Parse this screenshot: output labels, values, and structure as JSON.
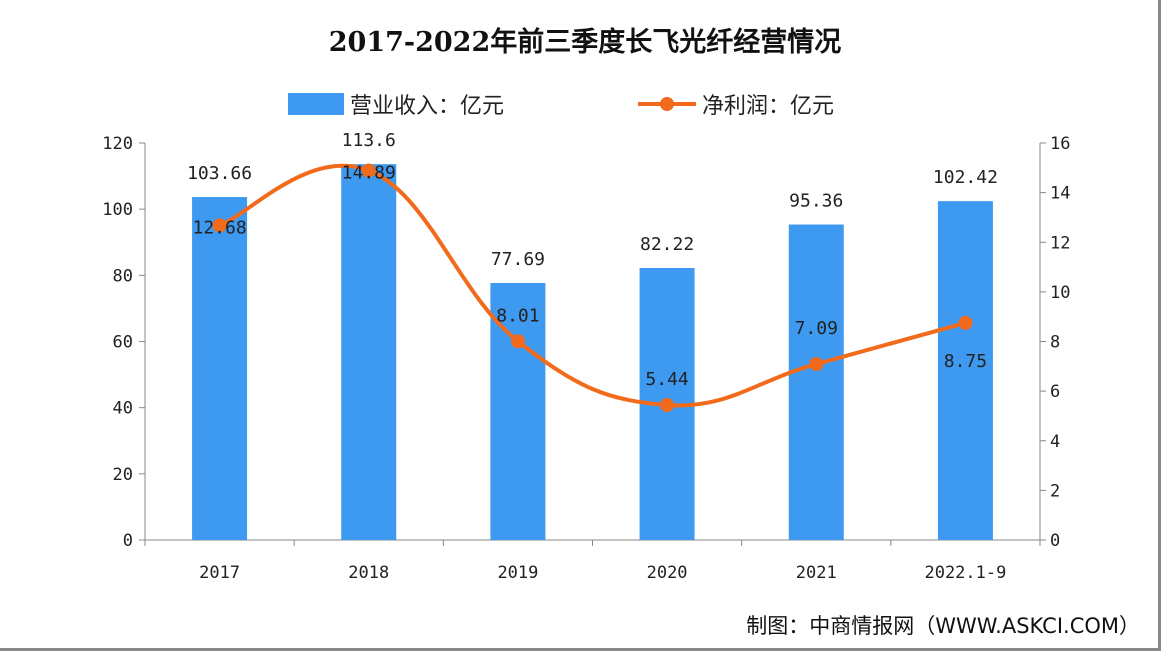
{
  "chart_data": {
    "type": "bar",
    "title": "2017-2022年前三季度长飞光纤经营情况",
    "categories": [
      "2017",
      "2018",
      "2019",
      "2020",
      "2021",
      "2022.1-9"
    ],
    "series": [
      {
        "name": "营业收入：亿元",
        "type": "bar",
        "axis": "left",
        "color": "#3d9af0",
        "values": [
          103.66,
          113.6,
          77.69,
          82.22,
          95.36,
          102.42
        ]
      },
      {
        "name": "净利润：亿元",
        "type": "line",
        "smooth": true,
        "axis": "right",
        "color": "#f26b1d",
        "values": [
          12.68,
          14.89,
          8.01,
          5.44,
          7.09,
          8.75
        ]
      }
    ],
    "y_left": {
      "range": [
        0,
        120
      ],
      "ticks": [
        0,
        20,
        40,
        60,
        80,
        100,
        120
      ]
    },
    "y_right": {
      "range": [
        0,
        16
      ],
      "ticks": [
        0,
        2,
        4,
        6,
        8,
        10,
        12,
        14,
        16
      ]
    },
    "legend": "top",
    "grid": false
  },
  "footer": "制图：中商情报网（WWW.ASKCI.COM）"
}
